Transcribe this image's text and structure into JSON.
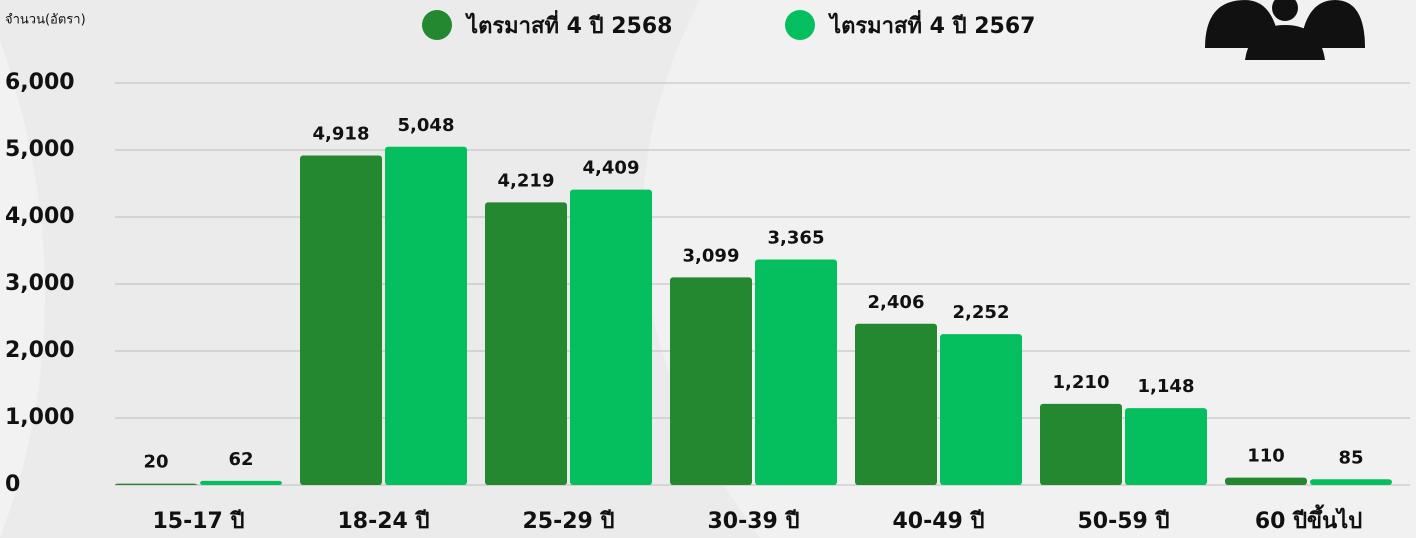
{
  "chart_data": {
    "type": "bar",
    "y_axis_label": "จำนวน(อัตรา)",
    "categories": [
      "15-17 ปี",
      "18-24 ปี",
      "25-29 ปี",
      "30-39 ปี",
      "40-49 ปี",
      "50-59 ปี",
      "60 ปีขึ้นไป"
    ],
    "series": [
      {
        "name": "ไตรมาสที่ 4 ปี 2568",
        "color": "#23882f",
        "values": [
          20,
          4918,
          4219,
          3099,
          2406,
          1210,
          110
        ],
        "value_labels": [
          "20",
          "4,918",
          "4,219",
          "3,099",
          "2,406",
          "1,210",
          "110"
        ]
      },
      {
        "name": "ไตรมาสที่ 4 ปี 2567",
        "color": "#05bf5f",
        "values": [
          62,
          5048,
          4409,
          3365,
          2252,
          1148,
          85
        ],
        "value_labels": [
          "62",
          "5,048",
          "4,409",
          "3,365",
          "2,252",
          "1,148",
          "85"
        ]
      }
    ],
    "ylim": [
      0,
      6000
    ],
    "yticks": [
      0,
      {
        "value": 1000,
        "label": "1,000"
      },
      {
        "value": 2000,
        "label": "2,000"
      },
      {
        "value": 3000,
        "label": "3,000"
      },
      {
        "value": 4000,
        "label": "4,000"
      },
      {
        "value": 5000,
        "label": "5,000"
      },
      {
        "value": 6000,
        "label": "6,000"
      }
    ],
    "grid": true
  }
}
